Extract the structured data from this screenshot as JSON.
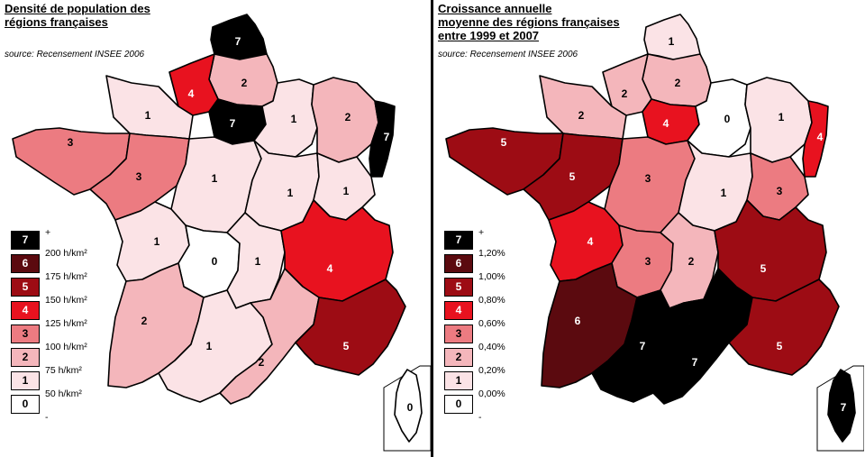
{
  "colors": {
    "0": "#ffffff",
    "1": "#fbe3e6",
    "2": "#f4b6bb",
    "3": "#ec7b81",
    "4": "#e8121f",
    "5": "#9d0c14",
    "6": "#5b0a0f",
    "7": "#000000"
  },
  "maps": [
    {
      "title_lines": [
        "Densité de population des",
        "régions françaises"
      ],
      "source": "source: Recensement INSEE 2006",
      "legend": {
        "plus": "+",
        "minus": "-",
        "labels": [
          "200 h/km²",
          "175 h/km²",
          "150 h/km²",
          "125 h/km²",
          "100 h/km²",
          "75 h/km²",
          "50 h/km²"
        ]
      },
      "regions": {
        "nord": 7,
        "picardie": 2,
        "haute_normandie": 4,
        "basse_normandie": 1,
        "idf": 7,
        "champagne": 1,
        "lorraine": 2,
        "alsace": 7,
        "bretagne": 3,
        "pays_loire": 3,
        "centre": 1,
        "bourgogne": 1,
        "franche_comte": 1,
        "poitou": 1,
        "limousin": 0,
        "auvergne": 1,
        "rhone_alpes": 4,
        "aquitaine": 2,
        "midi_pyrenees": 1,
        "languedoc": 2,
        "paca": 5,
        "corse": 0
      }
    },
    {
      "title_lines": [
        "Croissance annuelle",
        "moyenne des régions françaises",
        "entre 1999 et 2007"
      ],
      "source": "source: Recensement INSEE 2006",
      "legend": {
        "plus": "+",
        "minus": "-",
        "labels": [
          "1,20%",
          "1,00%",
          "0,80%",
          "0,60%",
          "0,40%",
          "0,20%",
          "0,00%"
        ]
      },
      "regions": {
        "nord": 1,
        "picardie": 2,
        "haute_normandie": 2,
        "basse_normandie": 2,
        "idf": 4,
        "champagne": 0,
        "lorraine": 1,
        "alsace": 4,
        "bretagne": 5,
        "pays_loire": 5,
        "centre": 3,
        "bourgogne": 1,
        "franche_comte": 3,
        "poitou": 4,
        "limousin": 3,
        "auvergne": 2,
        "rhone_alpes": 5,
        "aquitaine": 6,
        "midi_pyrenees": 7,
        "languedoc": 7,
        "paca": 5,
        "corse": 7
      }
    }
  ]
}
